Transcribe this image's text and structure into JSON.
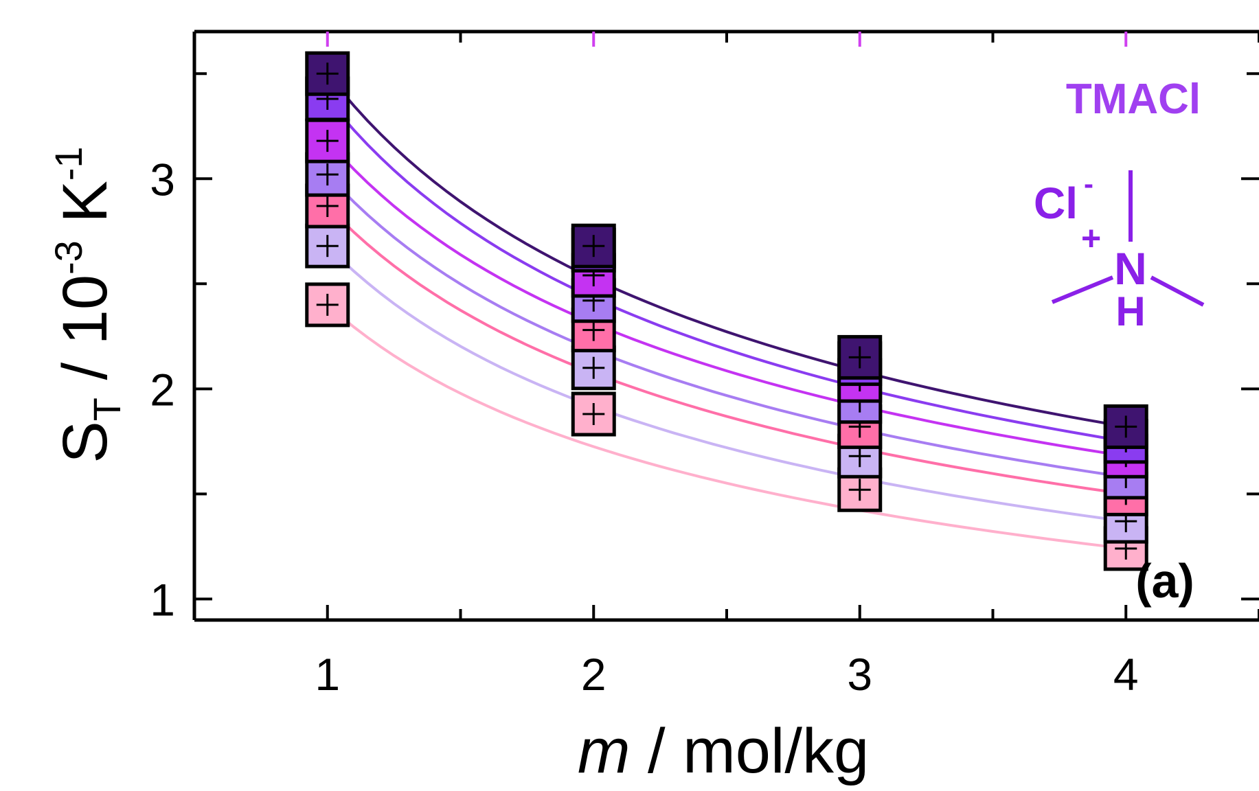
{
  "chart_data": {
    "type": "scatter",
    "xlabel": {
      "italic": "m",
      "rest": " / mol/kg"
    },
    "ylabel": {
      "main": "S",
      "sub": "T",
      "mid": " / 10",
      "sup1": "-3",
      "unit": " K",
      "sup2": "-1"
    },
    "xlim": [
      0.5,
      4.5
    ],
    "ylim": [
      0.9,
      3.7
    ],
    "x_ticks": [
      1,
      2,
      3,
      4
    ],
    "x_tick_labels": [
      "1",
      "2",
      "3",
      "4"
    ],
    "y_ticks": [
      1,
      2,
      3
    ],
    "y_tick_labels": [
      "1",
      "2",
      "3"
    ],
    "x": [
      1,
      2,
      3,
      4
    ],
    "series": [
      {
        "color": "#3f1470",
        "values": [
          3.5,
          2.68,
          2.15,
          1.82
        ]
      },
      {
        "color": "#8a3cf0",
        "values": [
          3.38,
          2.66,
          2.12,
          1.75
        ]
      },
      {
        "color": "#c433f2",
        "values": [
          3.18,
          2.54,
          2.04,
          1.68
        ]
      },
      {
        "color": "#a77df2",
        "values": [
          3.02,
          2.42,
          1.94,
          1.58
        ]
      },
      {
        "color": "#ff6fa8",
        "values": [
          2.87,
          2.28,
          1.82,
          1.5
        ]
      },
      {
        "color": "#c9b4f4",
        "values": [
          2.68,
          2.1,
          1.68,
          1.37
        ]
      },
      {
        "color": "#ffb0cc",
        "values": [
          2.4,
          1.88,
          1.52,
          1.24
        ]
      }
    ],
    "annotations": {
      "title": "TMACl",
      "formula_anion": "Cl",
      "formula_anion_sup": "-",
      "formula_plus": "+",
      "formula_n": "N",
      "formula_h": "H",
      "panel": "(a)"
    },
    "colors": {
      "accent": "#a040f0",
      "anion": "#8a20e8",
      "tick_top": "#d040f0"
    }
  }
}
